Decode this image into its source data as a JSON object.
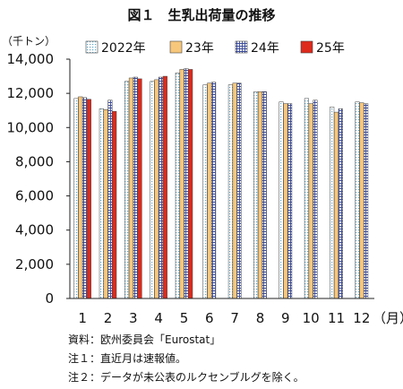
{
  "title": "図１　生乳出荷量の推移",
  "y_unit": "（千トン）",
  "x_unit": "（月）",
  "notes": [
    "資料：欧州委員会「Eurostat」",
    "注１：直近月は速報値。",
    "注２：データが未公表のルクセンブルグを除く。"
  ],
  "colors": {
    "2022": "#ffffff",
    "23": "#f7c77c",
    "24": "#ffffff",
    "25": "#dd2a1c",
    "dots_2022": "#5fa6c9",
    "grid_24": "#3d4d9a",
    "bar_outline": "#444444",
    "axis": "#222222"
  },
  "chart_data": {
    "type": "bar",
    "title": "図１　生乳出荷量の推移",
    "ylabel": "（千トン）",
    "xlabel": "（月）",
    "ylim": [
      0,
      14000
    ],
    "yticks": [
      0,
      2000,
      4000,
      6000,
      8000,
      10000,
      12000,
      14000
    ],
    "ytick_labels": [
      "0",
      "2,000",
      "4,000",
      "6,000",
      "8,000",
      "10,000",
      "12,000",
      "14,000"
    ],
    "categories": [
      "1",
      "2",
      "3",
      "4",
      "5",
      "6",
      "7",
      "8",
      "9",
      "10",
      "11",
      "12"
    ],
    "grid": false,
    "legend_position": "top",
    "series": [
      {
        "name": "2022年",
        "pattern": "dots",
        "values": [
          11700,
          11100,
          12700,
          12700,
          13200,
          12500,
          12500,
          12100,
          11500,
          11700,
          11200,
          11500
        ]
      },
      {
        "name": "23年",
        "pattern": "solid",
        "values": [
          11800,
          11050,
          12900,
          12800,
          13400,
          12600,
          12600,
          12100,
          11400,
          11400,
          10900,
          11450
        ]
      },
      {
        "name": "24年",
        "pattern": "grid",
        "values": [
          11750,
          11600,
          12950,
          12950,
          13450,
          12650,
          12600,
          12100,
          11400,
          11600,
          11100,
          11400
        ]
      },
      {
        "name": "25年",
        "pattern": "solid",
        "values": [
          11650,
          10950,
          12850,
          13000,
          13400,
          null,
          null,
          null,
          null,
          null,
          null,
          null
        ]
      }
    ]
  }
}
